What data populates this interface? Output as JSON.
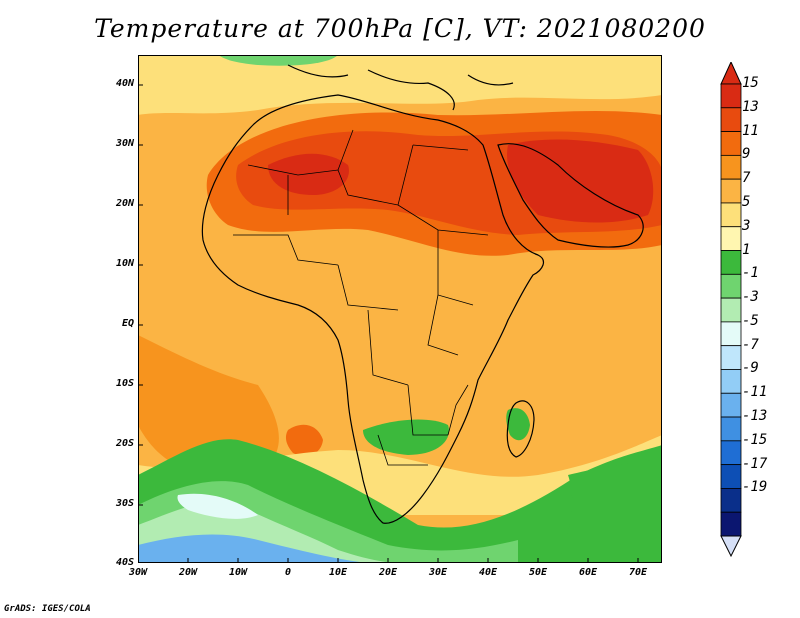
{
  "title": "Temperature at 700hPa [C], VT: 2021080200",
  "credit": "GrADS: IGES/COLA",
  "map": {
    "lat_labels": [
      "40N",
      "30N",
      "20N",
      "10N",
      "EQ",
      "10S",
      "20S",
      "30S",
      "40S"
    ],
    "lon_labels": [
      "30W",
      "20W",
      "10W",
      "0",
      "10E",
      "20E",
      "30E",
      "40E",
      "50E",
      "60E",
      "70E"
    ]
  },
  "colorbar": {
    "labels": [
      "15",
      "13",
      "11",
      "9",
      "7",
      "5",
      "3",
      "1",
      "-1",
      "-3",
      "-5",
      "-7",
      "-9",
      "-11",
      "-13",
      "-15",
      "-17",
      "-19"
    ],
    "colors": [
      "#d92b14",
      "#e84b0f",
      "#f26b0e",
      "#f7941e",
      "#fbb444",
      "#fde07a",
      "#fff6b0",
      "#3cb93c",
      "#6fd46f",
      "#b2ecb2",
      "#e4fbf8",
      "#bfe6fb",
      "#92cdf6",
      "#6ab1ee",
      "#3f90e2",
      "#1f6ed4",
      "#0d4fb5",
      "#0a2f8a",
      "#0b1670"
    ],
    "top_color": "#d92b14",
    "bottom_color": "#d6e0f7"
  }
}
